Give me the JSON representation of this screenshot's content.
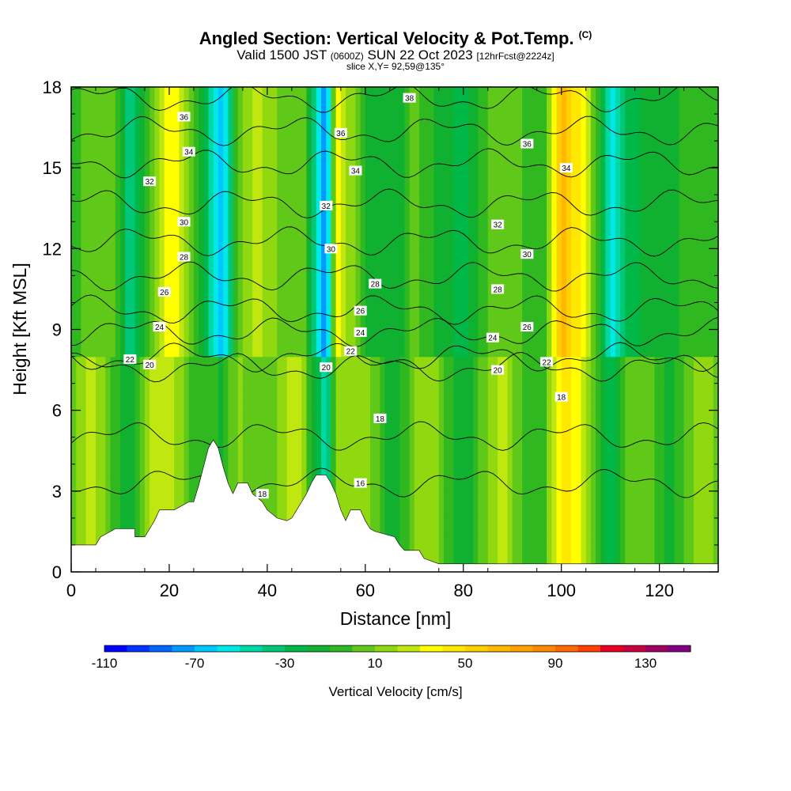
{
  "header": {
    "title": "Angled Section: Vertical Velocity & Pot.Temp.",
    "title_tag": "(C)",
    "subtitle_a": "Valid 1500 JST ",
    "subtitle_b": "(0600Z)",
    "subtitle_c": " SUN 22 Oct 2023 ",
    "subtitle_d": "[12hrFcst@2224z]",
    "slice": "slice X,Y= 92,59@135°"
  },
  "chart_data": {
    "type": "heatmap",
    "xlabel": "Distance [nm]",
    "ylabel": "Height [Kft MSL]",
    "xlim": [
      0,
      132
    ],
    "ylim": [
      0,
      18
    ],
    "x_ticks": [
      "0",
      "20",
      "40",
      "60",
      "80",
      "100",
      "120"
    ],
    "y_ticks": [
      "0",
      "3",
      "6",
      "9",
      "12",
      "15",
      "18"
    ],
    "colorbar": {
      "title": "Vertical Velocity [cm/s]",
      "tick_labels": [
        "-110",
        "-70",
        "-30",
        "10",
        "50",
        "90",
        "130"
      ],
      "tick_values": [
        -110,
        -70,
        -30,
        10,
        50,
        90,
        130
      ],
      "range": [
        -110,
        150
      ],
      "colors": [
        "#0000ff",
        "#0033ff",
        "#0066ff",
        "#0099ff",
        "#00c8ff",
        "#00e8e8",
        "#00d8a8",
        "#00c878",
        "#00b848",
        "#10b030",
        "#30b820",
        "#60c818",
        "#90d810",
        "#c0e810",
        "#ffff00",
        "#ffe800",
        "#ffd000",
        "#ffb800",
        "#ffa000",
        "#ff8800",
        "#ff6800",
        "#ff4000",
        "#e80020",
        "#c80040",
        "#a00060",
        "#800080"
      ]
    },
    "vertical_velocity_columns": [
      {
        "x": 2,
        "w": 0
      },
      {
        "x": 5,
        "w": 10
      },
      {
        "x": 9,
        "w": 0
      },
      {
        "x": 12,
        "w": -40
      },
      {
        "x": 15,
        "w": -15
      },
      {
        "x": 17,
        "w": 15
      },
      {
        "x": 21,
        "w": 40
      },
      {
        "x": 25,
        "w": 5
      },
      {
        "x": 28,
        "w": -35
      },
      {
        "x": 31,
        "w": -70
      },
      {
        "x": 34,
        "w": 5
      },
      {
        "x": 38,
        "w": 25
      },
      {
        "x": 43,
        "w": 5
      },
      {
        "x": 47,
        "w": 10
      },
      {
        "x": 50,
        "w": -50
      },
      {
        "x": 52,
        "w": -90
      },
      {
        "x": 54,
        "w": 35
      },
      {
        "x": 57,
        "w": 15
      },
      {
        "x": 61,
        "w": -15
      },
      {
        "x": 66,
        "w": -20
      },
      {
        "x": 70,
        "w": 5
      },
      {
        "x": 75,
        "w": -15
      },
      {
        "x": 80,
        "w": -25
      },
      {
        "x": 84,
        "w": -5
      },
      {
        "x": 88,
        "w": 10
      },
      {
        "x": 92,
        "w": 0
      },
      {
        "x": 96,
        "w": -10
      },
      {
        "x": 100,
        "w": 65
      },
      {
        "x": 104,
        "w": 40
      },
      {
        "x": 107,
        "w": 0
      },
      {
        "x": 110,
        "w": -60
      },
      {
        "x": 114,
        "w": -25
      },
      {
        "x": 118,
        "w": -15
      },
      {
        "x": 124,
        "w": -10
      },
      {
        "x": 128,
        "w": -5
      },
      {
        "x": 132,
        "w": -5
      }
    ],
    "potential_temperature_contours": [
      {
        "level": 16,
        "labels": [
          [
            59,
            3.3
          ]
        ]
      },
      {
        "level": 18,
        "labels": [
          [
            39,
            2.9
          ],
          [
            63,
            5.7
          ],
          [
            100,
            6.5
          ]
        ]
      },
      {
        "level": 20,
        "labels": [
          [
            16,
            7.7
          ],
          [
            52,
            7.6
          ],
          [
            87,
            7.5
          ]
        ]
      },
      {
        "level": 22,
        "labels": [
          [
            12,
            7.9
          ],
          [
            57,
            8.2
          ],
          [
            97,
            7.8
          ]
        ]
      },
      {
        "level": 24,
        "labels": [
          [
            18,
            9.1
          ],
          [
            59,
            8.9
          ],
          [
            86,
            8.7
          ]
        ]
      },
      {
        "level": 26,
        "labels": [
          [
            19,
            10.4
          ],
          [
            59,
            9.7
          ],
          [
            93,
            9.1
          ]
        ]
      },
      {
        "level": 28,
        "labels": [
          [
            23,
            11.7
          ],
          [
            62,
            10.7
          ],
          [
            87,
            10.5
          ]
        ]
      },
      {
        "level": 30,
        "labels": [
          [
            23,
            13.0
          ],
          [
            53,
            12.0
          ],
          [
            93,
            11.8
          ]
        ]
      },
      {
        "level": 32,
        "labels": [
          [
            16,
            14.5
          ],
          [
            52,
            13.6
          ],
          [
            87,
            12.9
          ]
        ]
      },
      {
        "level": 34,
        "labels": [
          [
            24,
            15.6
          ],
          [
            58,
            14.9
          ],
          [
            101,
            15.0
          ]
        ]
      },
      {
        "level": 36,
        "labels": [
          [
            23,
            16.9
          ],
          [
            55,
            16.3
          ],
          [
            93,
            15.9
          ]
        ]
      },
      {
        "level": 38,
        "labels": [
          [
            69,
            17.6
          ]
        ]
      }
    ],
    "terrain": [
      [
        0,
        1.0
      ],
      [
        5,
        1.0
      ],
      [
        6,
        1.3
      ],
      [
        9,
        1.6
      ],
      [
        13,
        1.6
      ],
      [
        13,
        1.3
      ],
      [
        15,
        1.3
      ],
      [
        16,
        1.6
      ],
      [
        17,
        1.9
      ],
      [
        18,
        2.3
      ],
      [
        21,
        2.3
      ],
      [
        24,
        2.6
      ],
      [
        25,
        2.6
      ],
      [
        26,
        3.2
      ],
      [
        27,
        3.9
      ],
      [
        28,
        4.6
      ],
      [
        29,
        4.9
      ],
      [
        30,
        4.6
      ],
      [
        31,
        3.9
      ],
      [
        32,
        3.3
      ],
      [
        33,
        2.9
      ],
      [
        34,
        3.3
      ],
      [
        36,
        3.3
      ],
      [
        37,
        2.9
      ],
      [
        39,
        2.6
      ],
      [
        40,
        2.3
      ],
      [
        42,
        2.0
      ],
      [
        44,
        1.9
      ],
      [
        45,
        2.0
      ],
      [
        46,
        2.3
      ],
      [
        47,
        2.6
      ],
      [
        48,
        2.9
      ],
      [
        49,
        3.3
      ],
      [
        50,
        3.6
      ],
      [
        52,
        3.6
      ],
      [
        53,
        3.3
      ],
      [
        54,
        2.9
      ],
      [
        55,
        2.3
      ],
      [
        56,
        1.9
      ],
      [
        57,
        2.3
      ],
      [
        59,
        2.3
      ],
      [
        60,
        1.9
      ],
      [
        61,
        1.6
      ],
      [
        62,
        1.5
      ],
      [
        66,
        1.3
      ],
      [
        67,
        1.0
      ],
      [
        68,
        0.8
      ],
      [
        71,
        0.8
      ],
      [
        72,
        0.5
      ],
      [
        75,
        0.3
      ],
      [
        132,
        0.3
      ]
    ]
  }
}
